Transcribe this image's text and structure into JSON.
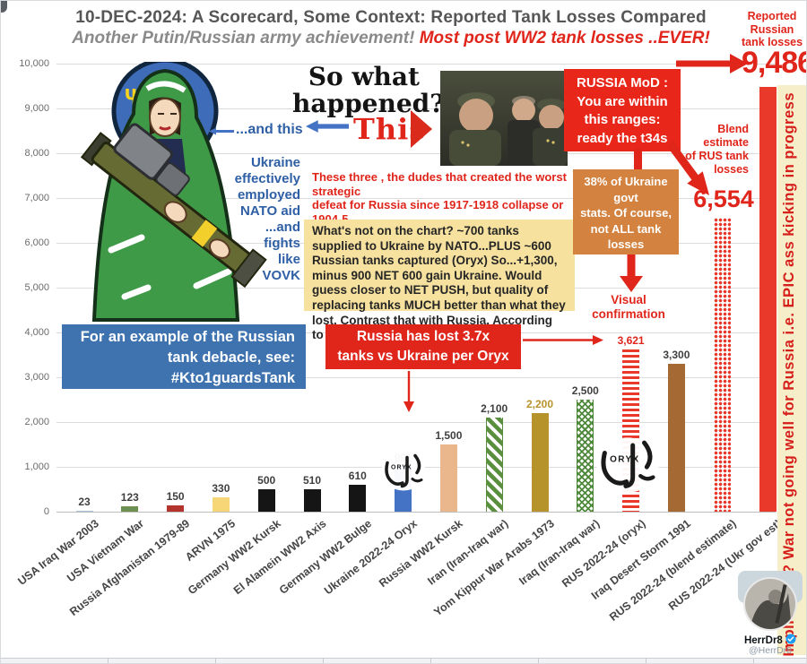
{
  "header": {
    "title": "10-DEC-2024: A Scorecard, Some Context: Reported Tank Losses Compared",
    "subtitle_gray": "Another Putin/Russian army achievement! ",
    "subtitle_red": "Most post WW2 tank losses ..EVER!"
  },
  "chart_data": {
    "type": "bar",
    "title": "Reported Tank Losses Compared",
    "xlabel": "",
    "ylabel": "",
    "ylim": [
      0,
      10000
    ],
    "grid": true,
    "legend": "none",
    "ytick_labels": [
      "0",
      "1,000",
      "2,000",
      "3,000",
      "4,000",
      "5,000",
      "6,000",
      "7,000",
      "8,000",
      "9,000",
      "10,000"
    ],
    "bars": [
      {
        "category": "USA Iraq War 2003",
        "value": 23,
        "label": "23",
        "color": "#a9c3de",
        "pattern": "solid"
      },
      {
        "category": "USA Vietnam War",
        "value": 123,
        "label": "123",
        "color": "#6d9051",
        "pattern": "solid"
      },
      {
        "category": "Russia Afghanistan 1979-89",
        "value": 150,
        "label": "150",
        "color": "#b3342c",
        "pattern": "solid"
      },
      {
        "category": "ARVN 1975",
        "value": 330,
        "label": "330",
        "color": "#f7d678",
        "pattern": "solid"
      },
      {
        "category": "Germany WW2 Kursk",
        "value": 500,
        "label": "500",
        "color": "#151515",
        "pattern": "solid"
      },
      {
        "category": "El Alamein WW2 Axis",
        "value": 510,
        "label": "510",
        "color": "#151515",
        "pattern": "solid"
      },
      {
        "category": "Germany WW2 Bulge",
        "value": 610,
        "label": "610",
        "color": "#151515",
        "pattern": "solid"
      },
      {
        "category": "Ukraine 2022-24 Oryx",
        "value": 991,
        "label": "991",
        "color": "#4472c4",
        "pattern": "solid"
      },
      {
        "category": "Russia WW2 Kursk",
        "value": 1500,
        "label": "1,500",
        "color": "#eab68b",
        "pattern": "solid"
      },
      {
        "category": "Iran (Iran-Iraq war)",
        "value": 2100,
        "label": "2,100",
        "color": "#5a8f3d",
        "pattern": "diagonal"
      },
      {
        "category": "Yom Kippur War Arabs 1973",
        "value": 2200,
        "label": "2,200",
        "color": "#b7932c",
        "pattern": "solid",
        "label_color": "#b7932c"
      },
      {
        "category": "Iraq (Iran-Iraq war)",
        "value": 2500,
        "label": "2,500",
        "color": "#4f8a3c",
        "pattern": "cross"
      },
      {
        "category": "RUS 2022-24 (oryx)",
        "value": 3621,
        "label": "3,621",
        "color": "#e8392b",
        "pattern": "hstripes",
        "label_color": "#e0251b"
      },
      {
        "category": "Iraq Desert Storm 1991",
        "value": 3300,
        "label": "3,300",
        "color": "#a56a33",
        "pattern": "solid"
      },
      {
        "category": "RUS 2022-24 (blend estimate)",
        "value": 6554,
        "label": "",
        "color": "#e8392b",
        "pattern": "dots"
      },
      {
        "category": "RUS 2022-24 (Ukr gov est)",
        "value": 9486,
        "label": "",
        "color": "#e8392b",
        "pattern": "solid"
      }
    ]
  },
  "annotations": {
    "so_what": "So what\nhappened?",
    "this_label": "This",
    "and_this": "...and this",
    "ukraine_aid": "Ukraine\neffectively\nemployed\nNATO aid\n...and\nfights\nlike\nVOVK",
    "three_dudes": "These three , the dudes that created the worst strategic\ndefeat for Russia since 1917-1918 collapse or 1904-5\nRussia Japanese war, have also wrecked the Russian army.",
    "yellow_note": "What's not on the chart? ~700 tanks supplied to Ukraine by NATO...PLUS ~600 Russian tanks captured (Oryx) So...+1,300, minus  900 NET 600 gain Ukraine. Would guess closer to NET PUSH, but quality of replacing tanks MUCH better than what they lost. Contrast that with Russia. According to Oryx, net 4k down.",
    "blue_note": "For an example of the Russian\ntank debacle, see:\n#Kto1guardsTank",
    "ratio_note": "Russia has lost 3.7x\ntanks vs Ukraine per Oryx",
    "mod_note": "RUSSIA MoD :\nYou are within\nthis ranges:\nready the t34s",
    "pct_note": "38% of Ukraine\ngovt\nstats. Of course,\nnot ALL tank losses\nhave a pic.",
    "visual_confirmation": "Visual\nconfirmation",
    "reported_caption": "Reported\nRussian\ntank losses",
    "reported_value": "9,486",
    "blend_caption": "Blend\nestimate\nof RUS tank\nlosses",
    "blend_value": "6,554",
    "side_banner": "Implication? War not going well for Russia i.e. EPIC ass kicking in progress",
    "oryx_logo_text": "ORYX"
  },
  "watermark": {
    "name": "HerrDr8",
    "handle": "@HerrDr8"
  },
  "colors": {
    "accent_red": "#e0251b",
    "box_red": "#e8271a",
    "box_orange": "#d3823f",
    "box_blue": "#3e73b0",
    "box_yellow": "#f6e19e",
    "banner_bg": "#f6eec9",
    "annotation_blue": "#2f5fa5",
    "arrow_blue": "#4472c4",
    "title_gray": "#565656"
  }
}
